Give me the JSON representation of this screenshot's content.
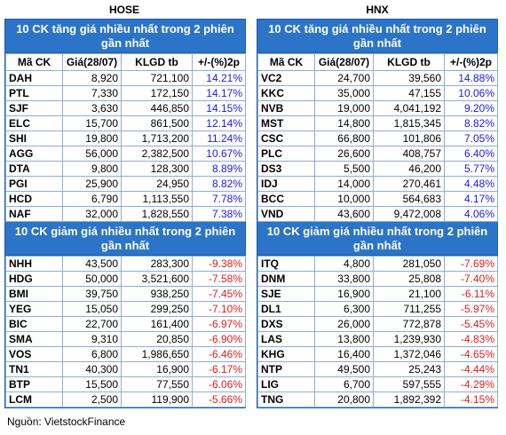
{
  "exchanges": {
    "left": "HOSE",
    "right": "HNX"
  },
  "titles": {
    "gainers": "10 CK tăng giá nhiều nhất trong 2 phiên gần nhất",
    "losers": "10 CK giảm giá nhiều nhất trong 2 phiên gần nhất"
  },
  "columns": [
    "Mã CK",
    "Giá(28/07)",
    "KLGD tb",
    "+/-(%)2p"
  ],
  "colors": {
    "header_bg": "#2b74c8",
    "up": "#1a1ae6",
    "down": "#e02020"
  },
  "hose": {
    "gainers": [
      [
        "DAH",
        "8,920",
        "721,100",
        "14.21%"
      ],
      [
        "PTL",
        "7,330",
        "172,150",
        "14.17%"
      ],
      [
        "SJF",
        "3,630",
        "446,850",
        "14.15%"
      ],
      [
        "ELC",
        "15,700",
        "861,500",
        "12.14%"
      ],
      [
        "SHI",
        "19,800",
        "1,713,200",
        "11.24%"
      ],
      [
        "AGG",
        "56,000",
        "2,382,500",
        "10.67%"
      ],
      [
        "DTA",
        "9,800",
        "128,300",
        "8.89%"
      ],
      [
        "PGI",
        "25,900",
        "24,950",
        "8.82%"
      ],
      [
        "HCD",
        "6,790",
        "1,113,550",
        "7.78%"
      ],
      [
        "NAF",
        "32,000",
        "1,828,550",
        "7.38%"
      ]
    ],
    "losers": [
      [
        "NHH",
        "43,500",
        "283,300",
        "-9.38%"
      ],
      [
        "HDG",
        "50,000",
        "3,521,600",
        "-7.58%"
      ],
      [
        "BMI",
        "39,750",
        "938,250",
        "-7.45%"
      ],
      [
        "YEG",
        "15,050",
        "299,250",
        "-7.10%"
      ],
      [
        "BIC",
        "22,700",
        "161,400",
        "-6.97%"
      ],
      [
        "SMA",
        "9,310",
        "20,850",
        "-6.90%"
      ],
      [
        "VOS",
        "6,800",
        "1,986,650",
        "-6.46%"
      ],
      [
        "TN1",
        "40,300",
        "16,900",
        "-6.17%"
      ],
      [
        "BTP",
        "15,500",
        "77,550",
        "-6.06%"
      ],
      [
        "LCM",
        "2,500",
        "119,900",
        "-5.66%"
      ]
    ]
  },
  "hnx": {
    "gainers": [
      [
        "VC2",
        "24,700",
        "39,560",
        "14.88%"
      ],
      [
        "KKC",
        "35,000",
        "47,155",
        "10.06%"
      ],
      [
        "NVB",
        "19,000",
        "4,041,192",
        "9.20%"
      ],
      [
        "MST",
        "14,800",
        "1,815,345",
        "8.82%"
      ],
      [
        "CSC",
        "66,800",
        "101,806",
        "7.05%"
      ],
      [
        "PLC",
        "26,600",
        "408,757",
        "6.40%"
      ],
      [
        "DS3",
        "5,500",
        "46,200",
        "5.77%"
      ],
      [
        "IDJ",
        "14,000",
        "270,461",
        "4.48%"
      ],
      [
        "BCC",
        "10,000",
        "564,683",
        "4.17%"
      ],
      [
        "VND",
        "43,600",
        "9,472,008",
        "4.06%"
      ]
    ],
    "losers": [
      [
        "ITQ",
        "4,800",
        "281,050",
        "-7.69%"
      ],
      [
        "DNM",
        "33,800",
        "25,808",
        "-7.40%"
      ],
      [
        "SJE",
        "16,900",
        "21,100",
        "-6.11%"
      ],
      [
        "DL1",
        "6,300",
        "711,255",
        "-5.97%"
      ],
      [
        "DXS",
        "26,000",
        "772,878",
        "-5.45%"
      ],
      [
        "LAS",
        "13,800",
        "1,239,930",
        "-4.83%"
      ],
      [
        "KHG",
        "16,400",
        "1,372,046",
        "-4.65%"
      ],
      [
        "NTP",
        "49,500",
        "25,243",
        "-4.44%"
      ],
      [
        "LIG",
        "6,700",
        "597,555",
        "-4.29%"
      ],
      [
        "TNG",
        "20,800",
        "1,892,392",
        "-4.15%"
      ]
    ]
  },
  "source": "Nguồn: VietstockFinance"
}
